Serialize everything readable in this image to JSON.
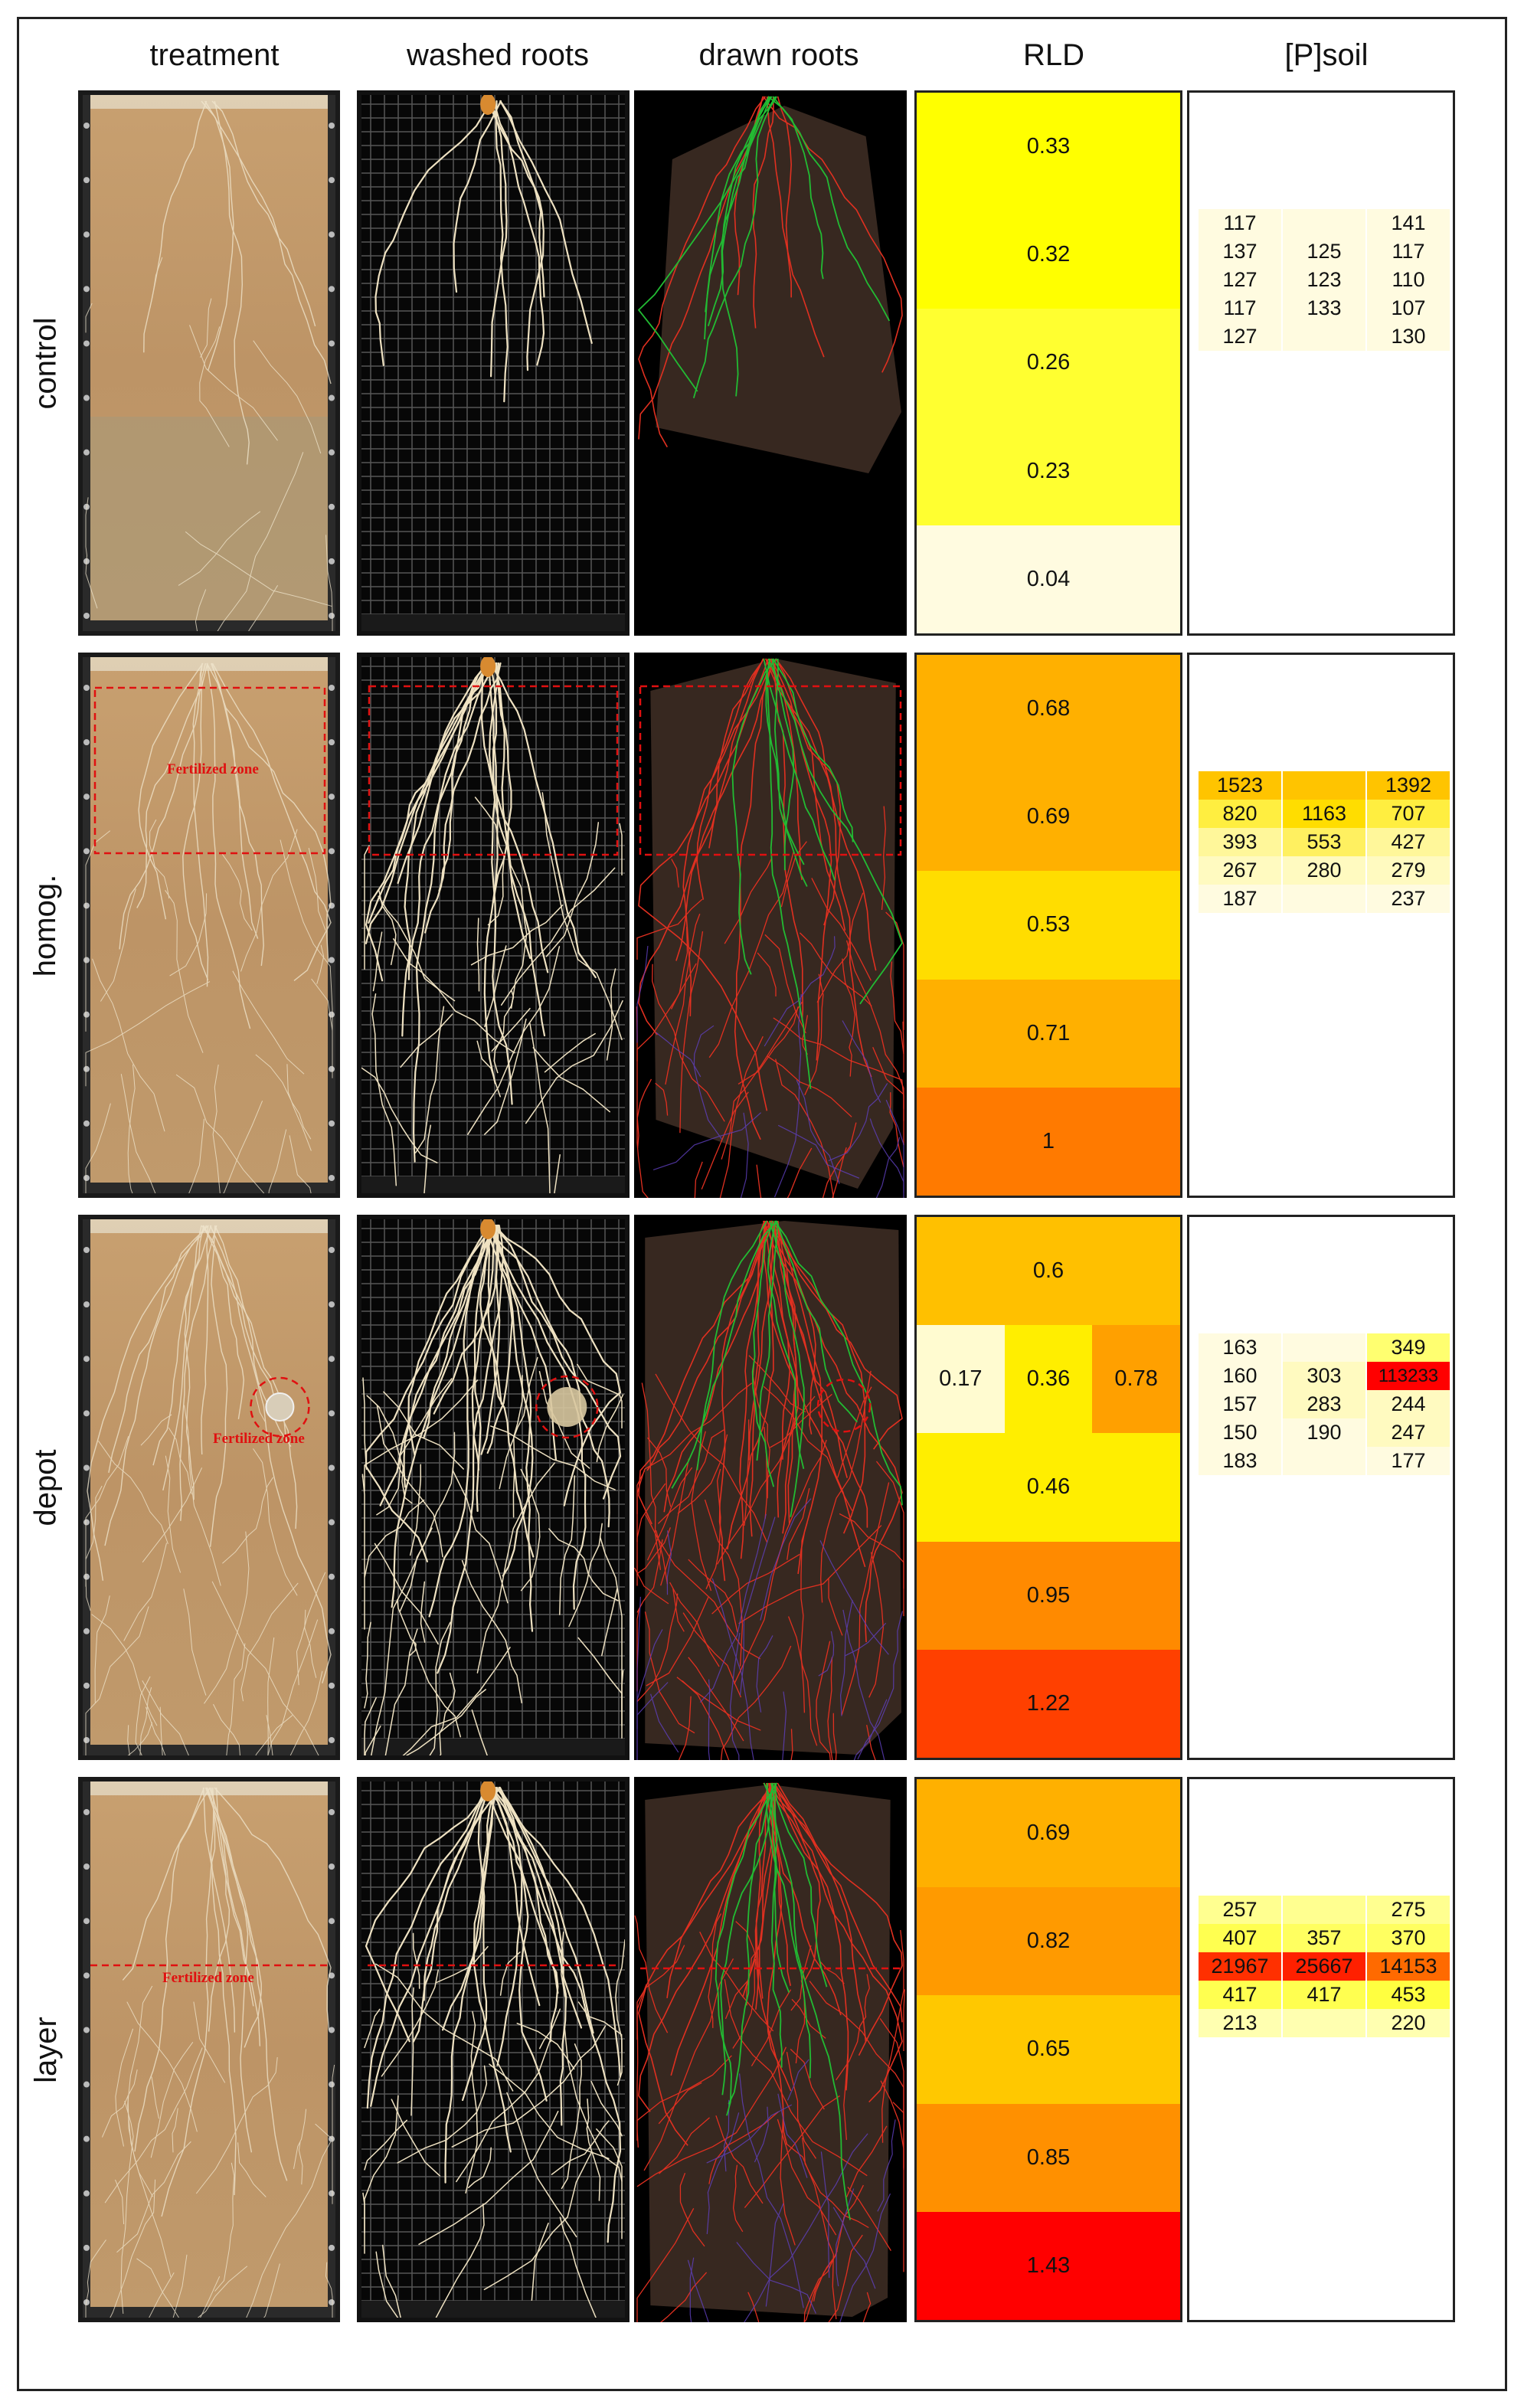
{
  "columns": {
    "treatment": "treatment",
    "washed": "washed roots",
    "drawn": "drawn roots",
    "rld": "RLD",
    "psoil": "[P]soil"
  },
  "fertilized_label": "Fertilized zone",
  "colors": {
    "very_light": "#fffbe0",
    "light_yellow": "#fff79a",
    "yellow": "#ffff00",
    "gold": "#ffdd00",
    "orange": "#ffb000",
    "dark_orange": "#ff7a00",
    "red_orange": "#ff4000",
    "red": "#ff0000",
    "drawn_root_primary": "#22bb33",
    "drawn_root_lateral": "#e03020",
    "drawn_root_fine": "#6040c0"
  },
  "rows": [
    {
      "label": "control",
      "rld": {
        "layers": [
          "0.33",
          "0.32",
          "0.26",
          "0.23",
          "0.04"
        ],
        "colors": [
          "#ffff00",
          "#ffff00",
          "#ffff30",
          "#ffff30",
          "#fffbe0"
        ],
        "split_layer": null
      },
      "psoil": [
        {
          "values": [
            "117",
            "",
            "141"
          ],
          "colors": [
            "#fffbe0",
            "#fffbe0",
            "#fffbe0"
          ]
        },
        {
          "values": [
            "137",
            "125",
            "117"
          ],
          "colors": [
            "#fffbe0",
            "#fffbe0",
            "#fffbe0"
          ]
        },
        {
          "values": [
            "127",
            "123",
            "110"
          ],
          "colors": [
            "#fffbe0",
            "#fffbe0",
            "#fffbe0"
          ]
        },
        {
          "values": [
            "117",
            "133",
            "107"
          ],
          "colors": [
            "#fffbe0",
            "#fffbe0",
            "#fffbe0"
          ]
        },
        {
          "values": [
            "127",
            "",
            "130"
          ],
          "colors": [
            "#fffbe0",
            "#fffbe0",
            "#fffbe0"
          ]
        }
      ]
    },
    {
      "label": "homog.",
      "rld": {
        "layers": [
          "0.68",
          "0.69",
          "0.53",
          "0.71",
          "1"
        ],
        "colors": [
          "#ffb000",
          "#ffb000",
          "#ffdd00",
          "#ffb000",
          "#ff7a00"
        ],
        "split_layer": null
      },
      "psoil": [
        {
          "values": [
            "1523",
            "",
            "1392"
          ],
          "colors": [
            "#ffc400",
            "#ffc400",
            "#ffc400"
          ]
        },
        {
          "values": [
            "820",
            "1163",
            "707"
          ],
          "colors": [
            "#ffee40",
            "#ffdd00",
            "#ffee40"
          ]
        },
        {
          "values": [
            "393",
            "553",
            "427"
          ],
          "colors": [
            "#fff79a",
            "#fff060",
            "#fff79a"
          ]
        },
        {
          "values": [
            "267",
            "280",
            "279"
          ],
          "colors": [
            "#fffac0",
            "#fffac0",
            "#fffac0"
          ]
        },
        {
          "values": [
            "187",
            "",
            "237"
          ],
          "colors": [
            "#fffbe0",
            "#fffbe0",
            "#fffbe0"
          ]
        }
      ]
    },
    {
      "label": "depot",
      "rld": {
        "layers": [
          "0.6",
          "",
          "0.46",
          "0.95",
          "1.22"
        ],
        "colors": [
          "#ffc000",
          "#ffffff",
          "#ffee00",
          "#ff8a00",
          "#ff4000"
        ],
        "split_layer": {
          "index": 1,
          "values": [
            "0.17",
            "0.36",
            "0.78"
          ],
          "colors": [
            "#fffbd0",
            "#ffee00",
            "#ffa000"
          ]
        }
      },
      "psoil": [
        {
          "values": [
            "163",
            "",
            "349"
          ],
          "colors": [
            "#fffbe0",
            "#fffbe0",
            "#ffff70"
          ]
        },
        {
          "values": [
            "160",
            "303",
            "113233"
          ],
          "colors": [
            "#fffbe0",
            "#fffac0",
            "#ff0000"
          ]
        },
        {
          "values": [
            "157",
            "283",
            "244"
          ],
          "colors": [
            "#fffbe0",
            "#fffac0",
            "#fffac0"
          ]
        },
        {
          "values": [
            "150",
            "190",
            "247"
          ],
          "colors": [
            "#fffbe0",
            "#fffbe0",
            "#fffac0"
          ]
        },
        {
          "values": [
            "183",
            "",
            "177"
          ],
          "colors": [
            "#fffbe0",
            "#fffbe0",
            "#fffbe0"
          ]
        }
      ]
    },
    {
      "label": "layer",
      "rld": {
        "layers": [
          "0.69",
          "0.82",
          "0.65",
          "0.85",
          "1.43"
        ],
        "colors": [
          "#ffb000",
          "#ff9a00",
          "#ffc800",
          "#ff9000",
          "#ff0000"
        ],
        "split_layer": null
      },
      "psoil": [
        {
          "values": [
            "257",
            "",
            "275"
          ],
          "colors": [
            "#ffff90",
            "#ffff90",
            "#ffff90"
          ]
        },
        {
          "values": [
            "407",
            "357",
            "370"
          ],
          "colors": [
            "#ffff50",
            "#ffff60",
            "#ffff60"
          ]
        },
        {
          "values": [
            "21967",
            "25667",
            "14153"
          ],
          "colors": [
            "#ff3000",
            "#ff2000",
            "#ff6a00"
          ]
        },
        {
          "values": [
            "417",
            "417",
            "453"
          ],
          "colors": [
            "#ffff50",
            "#ffff50",
            "#ffff40"
          ]
        },
        {
          "values": [
            "213",
            "",
            "220"
          ],
          "colors": [
            "#ffffb0",
            "#ffffb0",
            "#ffffb0"
          ]
        }
      ]
    }
  ]
}
